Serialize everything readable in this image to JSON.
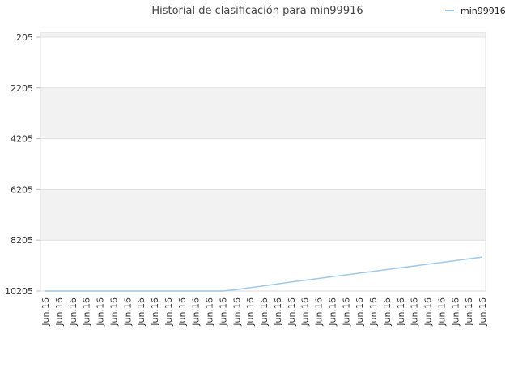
{
  "chart_data": {
    "type": "line",
    "title": "Historial de clasificación para min99916",
    "xlabel": "",
    "ylabel": "",
    "y_reversed": true,
    "ylim": [
      205,
      10205
    ],
    "yticks": [
      "205",
      "2205",
      "4205",
      "6205",
      "8205",
      "10205"
    ],
    "categories": [
      "Jun.16",
      "Jun.16",
      "Jun.16",
      "Jun.16",
      "Jun.16",
      "Jun.16",
      "Jun.16",
      "Jun.16",
      "Jun.16",
      "Jun.16",
      "Jun.16",
      "Jun.16",
      "Jun.16",
      "Jun.16",
      "Jun.16",
      "Jun.16",
      "Jun.16",
      "Jun.16",
      "Jun.16",
      "Jun.16",
      "Jun.16",
      "Jun.16",
      "Jun.16",
      "Jun.16",
      "Jun.16",
      "Jun.16",
      "Jun.16",
      "Jun.16",
      "Jun.16",
      "Jun.16",
      "Jun.16",
      "Jun.16",
      "Jun.16"
    ],
    "series": [
      {
        "name": "min99916",
        "color": "#9ec9ea",
        "values": [
          10205,
          10205,
          10205,
          10205,
          10205,
          10205,
          10205,
          10205,
          10205,
          10205,
          10205,
          10205,
          10205,
          10205,
          10150,
          10075,
          10000,
          9925,
          9850,
          9780,
          9710,
          9640,
          9570,
          9500,
          9430,
          9360,
          9290,
          9220,
          9150,
          9080,
          9010,
          8940,
          8870
        ]
      }
    ],
    "legend_position": "top-right",
    "grid": true,
    "band_color": "#f2f2f2",
    "grid_color": "#e0e0e0"
  }
}
